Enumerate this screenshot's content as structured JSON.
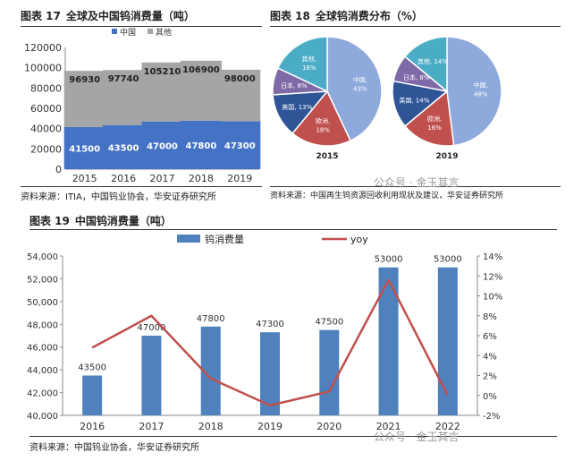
{
  "fig17": {
    "title_num": "图表 17",
    "title_text": "全球及中国钨消费量（吨）",
    "source": "资料来源：ITIA，中国钨业协会，华安证券研究所"
  },
  "fig18": {
    "title_num": "图表 18",
    "title_text": "全球钨消费分布（%）",
    "source": "资料来源：中国再生钨资源回收利用现状及建议，华安证券研究所"
  },
  "fig19": {
    "title_num": "图表 19",
    "title_text": "中国钨消费量（吨）",
    "source": "资料来源：中国钨业协会，华安证券研究所"
  },
  "watermark": "公众号 · 金玉其言",
  "colors": {
    "china": "#4472C4",
    "other": "#A5A5A5",
    "bar19": "#4F81BD",
    "yoy": "#C0504D",
    "pie_china": "#8EA9DB",
    "pie_europe": "#C0504D",
    "pie_usa": "#2F5597",
    "pie_japan": "#7F6AA8",
    "pie_other": "#4BACC6"
  },
  "chart_data": [
    {
      "id": "fig17",
      "type": "bar",
      "stacked": true,
      "categories": [
        "2015",
        "2016",
        "2017",
        "2018",
        "2019"
      ],
      "series": [
        {
          "name": "中国",
          "values": [
            41500,
            43500,
            47000,
            47800,
            47300
          ]
        },
        {
          "name": "其他",
          "values": [
            55430,
            54240,
            58210,
            59100,
            50700
          ]
        }
      ],
      "totals": [
        96930,
        97740,
        105210,
        106900,
        98000
      ],
      "ylim": [
        0,
        120000
      ],
      "yticks": [
        0,
        20000,
        40000,
        60000,
        80000,
        100000,
        120000
      ],
      "legend": "top",
      "grid": false
    },
    {
      "id": "fig18",
      "type": "pie",
      "pies": [
        {
          "label": "2015",
          "slices": [
            {
              "name": "中国",
              "value": 43
            },
            {
              "name": "欧洲",
              "value": 18
            },
            {
              "name": "美国",
              "value": 13
            },
            {
              "name": "日本",
              "value": 8
            },
            {
              "name": "其他",
              "value": 18
            }
          ]
        },
        {
          "label": "2019",
          "slices": [
            {
              "name": "中国",
              "value": 48
            },
            {
              "name": "欧洲",
              "value": 16
            },
            {
              "name": "美国",
              "value": 14
            },
            {
              "name": "日本",
              "value": 8
            },
            {
              "name": "其他",
              "value": 14
            }
          ]
        }
      ]
    },
    {
      "id": "fig19",
      "type": "bar",
      "categories": [
        "2016",
        "2017",
        "2018",
        "2019",
        "2020",
        "2021",
        "2022"
      ],
      "series": [
        {
          "name": "钨消费量",
          "type": "bar",
          "axis": "left",
          "values": [
            43500,
            47000,
            47800,
            47300,
            47500,
            53000,
            53000
          ]
        },
        {
          "name": "yoy",
          "type": "line",
          "axis": "right",
          "values": [
            4.8,
            8.0,
            1.7,
            -1.0,
            0.4,
            11.6,
            0.0
          ]
        }
      ],
      "ylim_left": [
        40000,
        54000
      ],
      "yticks_left": [
        40000,
        42000,
        44000,
        46000,
        48000,
        50000,
        52000,
        54000
      ],
      "ylim_right": [
        -2,
        14
      ],
      "yticks_right": [
        -2,
        0,
        2,
        4,
        6,
        8,
        10,
        12,
        14
      ],
      "right_unit": "%",
      "legend": "top",
      "grid": false
    }
  ]
}
